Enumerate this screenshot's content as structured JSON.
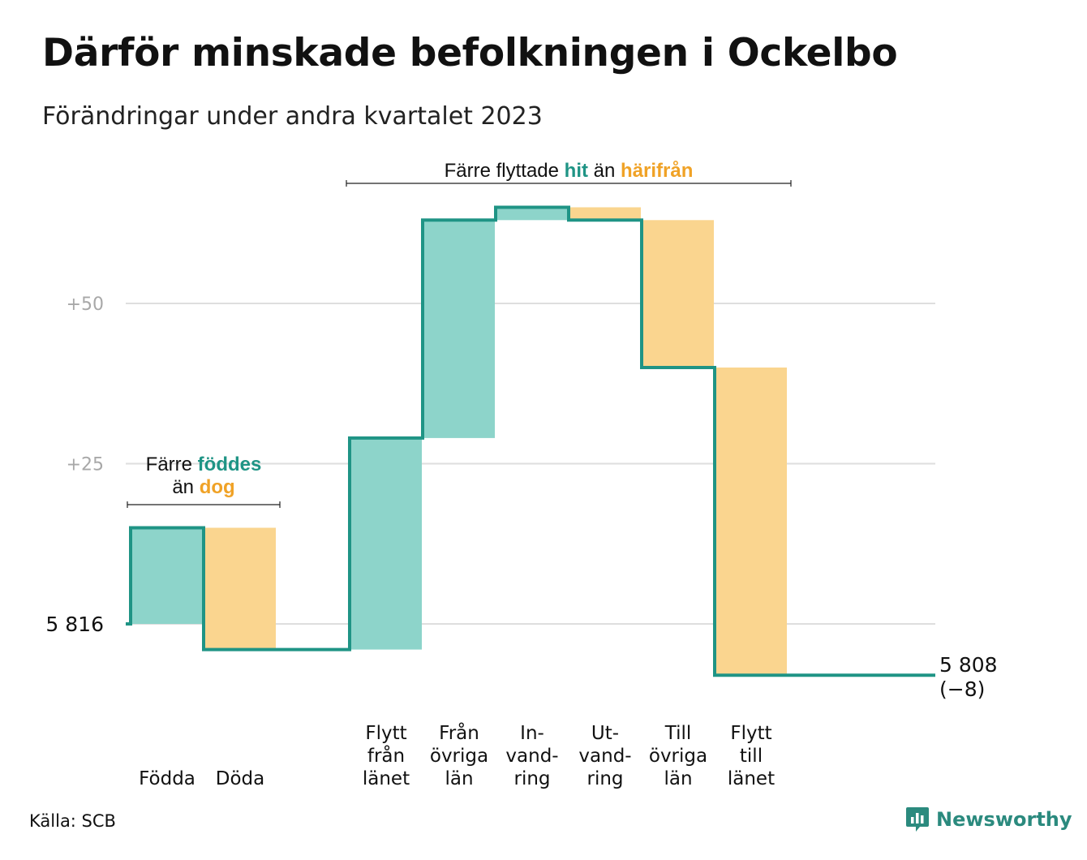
{
  "title": "Därför minskade befolkningen i Ockelbo",
  "subtitle": "Förändringar under andra kvartalet 2023",
  "source": "Källa: SCB",
  "brand": {
    "name": "Newsworthy",
    "icon": "newsworthy-logo-icon"
  },
  "colors": {
    "increase_fill": "#8dd4ca",
    "decrease_fill": "#fad58f",
    "step_line": "#1f9485",
    "increase_text": "#1f9485",
    "decrease_text": "#f0a226",
    "grid": "#dedede",
    "tick_text": "#a8a8a8"
  },
  "chart_data": {
    "type": "waterfall",
    "start": {
      "label": "5 816",
      "value": 5816
    },
    "end": {
      "label_value": "5 808",
      "label_change": "(−8)",
      "value": 5808,
      "change": -8
    },
    "y_ticks": [
      {
        "label": "+25",
        "value": 25
      },
      {
        "label": "+50",
        "value": 50
      }
    ],
    "grid": true,
    "steps": [
      {
        "label": [
          "Födda"
        ],
        "value": 15,
        "direction": "increase"
      },
      {
        "label": [
          "Döda"
        ],
        "value": -19,
        "direction": "decrease"
      },
      {
        "label": [],
        "value": 0,
        "direction": "spacer"
      },
      {
        "label": [
          "Flytt",
          "från",
          "länet"
        ],
        "value": 33,
        "direction": "increase"
      },
      {
        "label": [
          "Från",
          "övriga",
          "län"
        ],
        "value": 34,
        "direction": "increase"
      },
      {
        "label": [
          "In-",
          "vand-",
          "ring"
        ],
        "value": 2,
        "direction": "increase"
      },
      {
        "label": [
          "Ut-",
          "vand-",
          "ring"
        ],
        "value": -2,
        "direction": "decrease"
      },
      {
        "label": [
          "Till",
          "övriga",
          "län"
        ],
        "value": -23,
        "direction": "decrease"
      },
      {
        "label": [
          "Flytt",
          "till",
          "länet"
        ],
        "value": -48,
        "direction": "decrease"
      }
    ],
    "annotations": [
      {
        "id": "births",
        "lines": [
          [
            {
              "text": "Färre ",
              "style": "plain"
            },
            {
              "text": "föddes",
              "style": "increase"
            }
          ],
          [
            {
              "text": "än ",
              "style": "plain"
            },
            {
              "text": "dog",
              "style": "decrease"
            }
          ]
        ],
        "bracket_steps": [
          0,
          1
        ]
      },
      {
        "id": "migration",
        "lines": [
          [
            {
              "text": "Färre flyttade ",
              "style": "plain"
            },
            {
              "text": "hit",
              "style": "increase"
            },
            {
              "text": " än ",
              "style": "plain"
            },
            {
              "text": "härifrån",
              "style": "decrease"
            }
          ]
        ],
        "bracket_steps": [
          3,
          8
        ]
      }
    ]
  }
}
